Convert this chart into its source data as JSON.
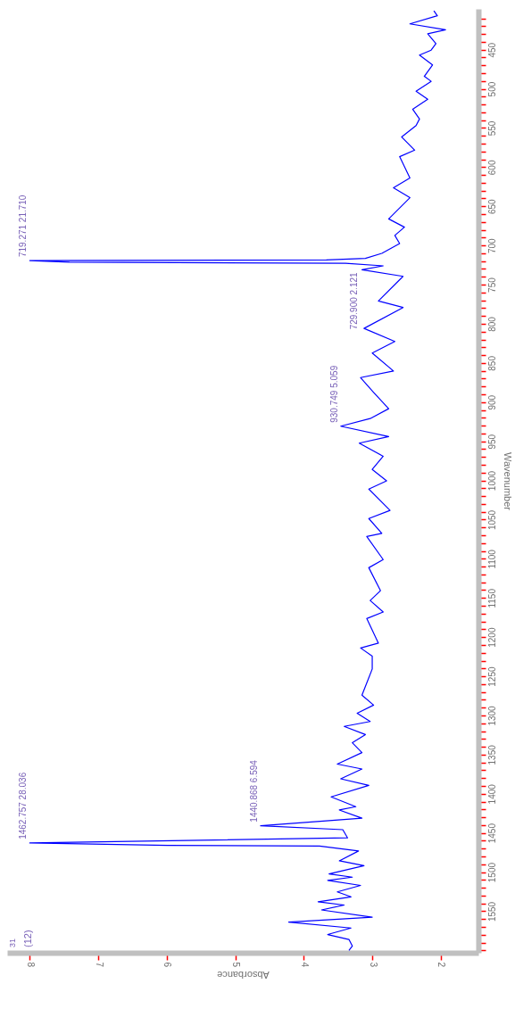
{
  "chart_data": {
    "type": "line",
    "orientation": "horizontal",
    "xlabel": "Absorbance",
    "ylabel": "Wavenumber",
    "x": [
      400.4,
      406.7,
      417.1,
      424.7,
      429.7,
      442.3,
      450.6,
      456.9,
      469.5,
      484.1,
      490.4,
      503,
      513.4,
      526,
      538.5,
      546.9,
      561.5,
      578.3,
      586.6,
      613.8,
      626.4,
      639,
      666.1,
      676.6,
      687.1,
      697.5,
      710.1,
      716.4,
      718.5,
      719.3,
      721.4,
      722.7,
      726,
      731,
      739.4,
      770.8,
      779.2,
      805.9,
      822.6,
      837.3,
      860.3,
      868.7,
      887.5,
      908.4,
      921,
      930.7,
      944,
      952.4,
      969.1,
      985.9,
      1000.5,
      1011,
      1038.2,
      1048.6,
      1067.5,
      1071.6,
      1101,
      1111.4,
      1140.7,
      1153.3,
      1167.9,
      1176.3,
      1207.7,
      1213.9,
      1224.4,
      1240.7,
      1274.2,
      1286.8,
      1297.2,
      1307.7,
      1314,
      1324.4,
      1334.9,
      1347.5,
      1362.1,
      1368.4,
      1380.9,
      1389.3,
      1404,
      1416.5,
      1420.7,
      1431.2,
      1440.9,
      1445.8,
      1456.3,
      1462.8,
      1465.9,
      1466.7,
      1473,
      1485.6,
      1491.8,
      1502.3,
      1506.5,
      1510.7,
      1517,
      1525.3,
      1531.6,
      1537.9,
      1542.1,
      1548.3,
      1557.5,
      1563.8,
      1571.4,
      1579.7,
      1586,
      1594.4,
      1600
    ],
    "series": [
      {
        "color": "#0000ff",
        "values": [
          2.1,
          2.05,
          2.45,
          1.93,
          2.19,
          2.07,
          2.14,
          2.31,
          2.12,
          2.24,
          2.14,
          2.36,
          2.19,
          2.41,
          2.31,
          2.36,
          2.57,
          2.38,
          2.6,
          2.45,
          2.69,
          2.45,
          2.76,
          2.53,
          2.67,
          2.6,
          2.86,
          3.1,
          3.67,
          8.0,
          7.42,
          3.39,
          2.84,
          3.15,
          2.55,
          2.91,
          2.55,
          3.12,
          2.67,
          3.0,
          2.69,
          3.17,
          2.98,
          2.76,
          3.03,
          3.46,
          2.76,
          3.19,
          2.84,
          3.0,
          2.79,
          3.05,
          2.74,
          3.05,
          2.86,
          3.08,
          2.84,
          3.05,
          2.88,
          3.03,
          2.84,
          3.08,
          2.91,
          3.17,
          3.0,
          3.0,
          3.15,
          2.98,
          3.22,
          3.03,
          3.41,
          3.1,
          3.29,
          3.15,
          3.51,
          3.15,
          3.46,
          3.05,
          3.6,
          3.24,
          3.48,
          3.15,
          4.63,
          3.43,
          3.36,
          8.0,
          5.99,
          3.77,
          3.2,
          3.48,
          3.12,
          3.63,
          3.29,
          3.65,
          3.17,
          3.51,
          3.31,
          3.79,
          3.41,
          3.74,
          3.0,
          4.22,
          3.31,
          3.65,
          3.34,
          3.29,
          3.34
        ]
      }
    ],
    "xlim": [
      8.33,
      1.45
    ],
    "xticks": [
      8,
      7,
      6,
      5,
      4,
      3,
      2
    ],
    "ylim": [
      1603,
      398
    ],
    "yticks": [
      {
        "value": 410,
        "label": null
      },
      {
        "value": 420,
        "label": null
      },
      {
        "value": 430,
        "label": null
      },
      {
        "value": 440,
        "label": null
      },
      450,
      {
        "value": 460,
        "label": null
      },
      {
        "value": 470,
        "label": null
      },
      {
        "value": 480,
        "label": null
      },
      {
        "value": 490,
        "label": null
      },
      500,
      {
        "value": 510,
        "label": null
      },
      {
        "value": 520,
        "label": null
      },
      {
        "value": 530,
        "label": null
      },
      {
        "value": 540,
        "label": null
      },
      550,
      {
        "value": 560,
        "label": null
      },
      {
        "value": 570,
        "label": null
      },
      {
        "value": 580,
        "label": null
      },
      {
        "value": 590,
        "label": null
      },
      600,
      {
        "value": 610,
        "label": null
      },
      {
        "value": 620,
        "label": null
      },
      {
        "value": 630,
        "label": null
      },
      {
        "value": 640,
        "label": null
      },
      650,
      {
        "value": 660,
        "label": null
      },
      {
        "value": 670,
        "label": null
      },
      {
        "value": 680,
        "label": null
      },
      {
        "value": 690,
        "label": null
      },
      700,
      {
        "value": 710,
        "label": null
      },
      {
        "value": 720,
        "label": null
      },
      {
        "value": 730,
        "label": null
      },
      {
        "value": 740,
        "label": null
      },
      750,
      {
        "value": 760,
        "label": null
      },
      {
        "value": 770,
        "label": null
      },
      {
        "value": 780,
        "label": null
      },
      {
        "value": 790,
        "label": null
      },
      800,
      {
        "value": 810,
        "label": null
      },
      {
        "value": 820,
        "label": null
      },
      {
        "value": 830,
        "label": null
      },
      {
        "value": 840,
        "label": null
      },
      850,
      {
        "value": 860,
        "label": null
      },
      {
        "value": 870,
        "label": null
      },
      {
        "value": 880,
        "label": null
      },
      {
        "value": 890,
        "label": null
      },
      900,
      {
        "value": 910,
        "label": null
      },
      {
        "value": 920,
        "label": null
      },
      {
        "value": 930,
        "label": null
      },
      {
        "value": 940,
        "label": null
      },
      950,
      {
        "value": 960,
        "label": null
      },
      {
        "value": 970,
        "label": null
      },
      {
        "value": 980,
        "label": null
      },
      {
        "value": 990,
        "label": null
      },
      1000,
      {
        "value": 1010,
        "label": null
      },
      {
        "value": 1020,
        "label": null
      },
      {
        "value": 1030,
        "label": null
      },
      {
        "value": 1040,
        "label": null
      },
      1050,
      {
        "value": 1060,
        "label": null
      },
      {
        "value": 1070,
        "label": null
      },
      {
        "value": 1080,
        "label": null
      },
      {
        "value": 1090,
        "label": null
      },
      1100,
      {
        "value": 1110,
        "label": null
      },
      {
        "value": 1120,
        "label": null
      },
      {
        "value": 1130,
        "label": null
      },
      {
        "value": 1140,
        "label": null
      },
      1150,
      {
        "value": 1160,
        "label": null
      },
      {
        "value": 1170,
        "label": null
      },
      {
        "value": 1180,
        "label": null
      },
      {
        "value": 1190,
        "label": null
      },
      1200,
      {
        "value": 1210,
        "label": null
      },
      {
        "value": 1220,
        "label": null
      },
      {
        "value": 1230,
        "label": null
      },
      {
        "value": 1240,
        "label": null
      },
      1250,
      {
        "value": 1260,
        "label": null
      },
      {
        "value": 1270,
        "label": null
      },
      {
        "value": 1280,
        "label": null
      },
      {
        "value": 1290,
        "label": null
      },
      1300,
      {
        "value": 1310,
        "label": null
      },
      {
        "value": 1320,
        "label": null
      },
      {
        "value": 1330,
        "label": null
      },
      {
        "value": 1340,
        "label": null
      },
      1350,
      {
        "value": 1360,
        "label": null
      },
      {
        "value": 1370,
        "label": null
      },
      {
        "value": 1380,
        "label": null
      },
      {
        "value": 1390,
        "label": null
      },
      1400,
      {
        "value": 1410,
        "label": null
      },
      {
        "value": 1420,
        "label": null
      },
      {
        "value": 1430,
        "label": null
      },
      {
        "value": 1440,
        "label": null
      },
      1450,
      {
        "value": 1460,
        "label": null
      },
      {
        "value": 1470,
        "label": null
      },
      {
        "value": 1480,
        "label": null
      },
      {
        "value": 1490,
        "label": null
      },
      1500,
      {
        "value": 1510,
        "label": null
      },
      {
        "value": 1520,
        "label": null
      },
      {
        "value": 1530,
        "label": null
      },
      {
        "value": 1540,
        "label": null
      },
      1550,
      {
        "value": 1560,
        "label": null
      },
      {
        "value": 1570,
        "label": null
      },
      {
        "value": 1580,
        "label": null
      },
      {
        "value": 1590,
        "label": null
      },
      {
        "value": 1600,
        "label": null
      }
    ],
    "annotations": [
      {
        "text": "719.271  21.710",
        "x": 8.0,
        "y": 719.271
      },
      {
        "text": "729.900  2.121",
        "x": 3.17,
        "y": 729.9
      },
      {
        "text": "930.749  5.059",
        "x": 3.46,
        "y": 930.749
      },
      {
        "text": "1440.868  6.594",
        "x": 4.63,
        "y": 1440.868
      },
      {
        "text": "1462.757  28.036",
        "x": 8.0,
        "y": 1462.757
      },
      "31",
      "(12)"
    ]
  }
}
